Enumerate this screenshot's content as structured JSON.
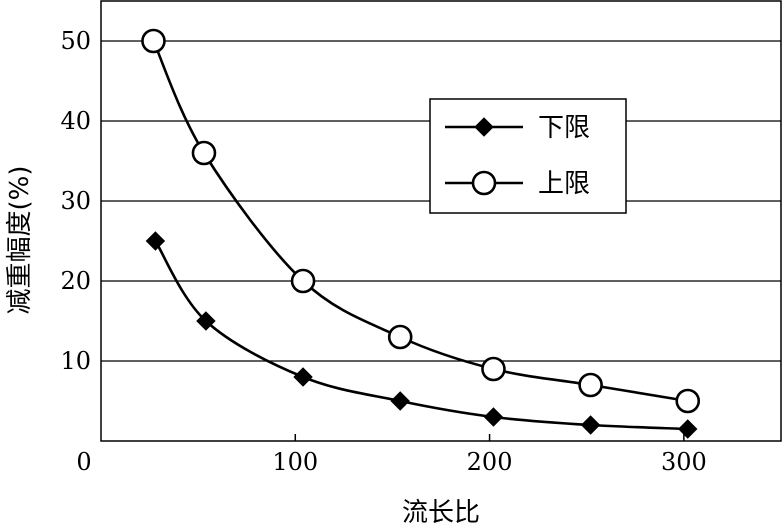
{
  "chart_data": {
    "type": "line",
    "xlabel": "流长比",
    "ylabel": "减重幅度(%)",
    "xlim": [
      0,
      350
    ],
    "ylim": [
      0,
      55
    ],
    "origin_label": "0",
    "xticks": [
      100,
      200,
      300
    ],
    "yticks": [
      10,
      20,
      30,
      40,
      50
    ],
    "grid": "horizontal",
    "legend_position": "upper-right",
    "series": [
      {
        "name": "下限",
        "marker": "filled-diamond",
        "x": [
          28,
          54,
          104,
          154,
          202,
          252,
          302
        ],
        "y": [
          25,
          15,
          8,
          5,
          3,
          2,
          1.5
        ]
      },
      {
        "name": "上限",
        "marker": "open-circle",
        "x": [
          27,
          53,
          104,
          154,
          202,
          252,
          302
        ],
        "y": [
          50,
          36,
          20,
          13,
          9,
          7,
          5
        ]
      }
    ]
  }
}
